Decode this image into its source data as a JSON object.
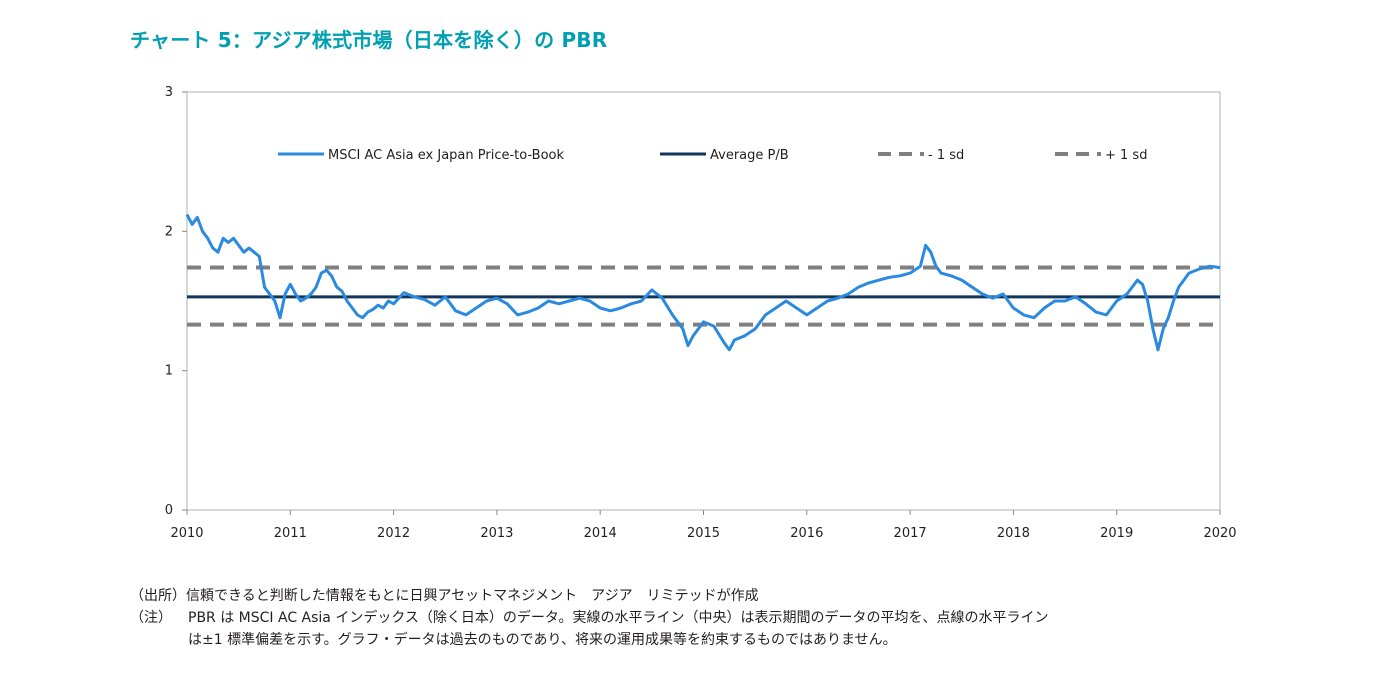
{
  "title": "チャート 5：アジア株式市場（日本を除く）の PBR",
  "notes": {
    "source": "（出所）信頼できると判断した情報をもとに日興アセットマネジメント　アジア　リミテッドが作成",
    "note_label": "（注）",
    "note_line1": "PBR は MSCI AC Asia インデックス（除く日本）のデータ。実線の水平ライン（中央）は表示期間のデータの平均を、点線の水平ライン",
    "note_line2": "は±1 標準偏差を示す。グラフ・データは過去のものであり、将来の運用成果等を約束するものではありません。"
  },
  "colors": {
    "title": "#00a0b0",
    "series": "#2b8ae0",
    "average": "#12365a",
    "sd": "#808080"
  },
  "chart_data": {
    "type": "line",
    "title": "",
    "xlabel": "",
    "ylabel": "",
    "xlim": [
      2010,
      2020
    ],
    "ylim": [
      0,
      3
    ],
    "x_ticks": [
      "2010",
      "2011",
      "2012",
      "2013",
      "2014",
      "2015",
      "2016",
      "2017",
      "2018",
      "2019",
      "2020"
    ],
    "y_ticks": [
      "0",
      "1",
      "2",
      "3"
    ],
    "grid": false,
    "legend_position": "top",
    "series": [
      {
        "name": "MSCI AC Asia ex Japan Price-to-Book",
        "style": "solid",
        "x": [
          2010.0,
          2010.05,
          2010.1,
          2010.15,
          2010.2,
          2010.25,
          2010.3,
          2010.35,
          2010.4,
          2010.45,
          2010.5,
          2010.55,
          2010.6,
          2010.65,
          2010.7,
          2010.75,
          2010.8,
          2010.85,
          2010.9,
          2010.95,
          2011.0,
          2011.05,
          2011.1,
          2011.15,
          2011.2,
          2011.25,
          2011.3,
          2011.35,
          2011.4,
          2011.45,
          2011.5,
          2011.55,
          2011.6,
          2011.65,
          2011.7,
          2011.75,
          2011.8,
          2011.85,
          2011.9,
          2011.95,
          2012.0,
          2012.1,
          2012.2,
          2012.3,
          2012.4,
          2012.5,
          2012.6,
          2012.7,
          2012.8,
          2012.9,
          2013.0,
          2013.1,
          2013.2,
          2013.3,
          2013.4,
          2013.5,
          2013.6,
          2013.7,
          2013.8,
          2013.9,
          2014.0,
          2014.1,
          2014.2,
          2014.3,
          2014.4,
          2014.5,
          2014.6,
          2014.7,
          2014.8,
          2014.85,
          2014.9,
          2014.95,
          2015.0,
          2015.1,
          2015.2,
          2015.25,
          2015.3,
          2015.4,
          2015.5,
          2015.6,
          2015.7,
          2015.8,
          2015.9,
          2016.0,
          2016.1,
          2016.2,
          2016.3,
          2016.4,
          2016.5,
          2016.6,
          2016.7,
          2016.8,
          2016.9,
          2017.0,
          2017.1,
          2017.15,
          2017.2,
          2017.25,
          2017.3,
          2017.4,
          2017.5,
          2017.6,
          2017.7,
          2017.8,
          2017.9,
          2018.0,
          2018.1,
          2018.2,
          2018.3,
          2018.4,
          2018.5,
          2018.6,
          2018.7,
          2018.8,
          2018.9,
          2019.0,
          2019.1,
          2019.2,
          2019.25,
          2019.3,
          2019.35,
          2019.4,
          2019.45,
          2019.5,
          2019.55,
          2019.6,
          2019.7,
          2019.8,
          2019.9,
          2020.0
        ],
        "y": [
          2.12,
          2.05,
          2.1,
          2.0,
          1.95,
          1.88,
          1.85,
          1.95,
          1.92,
          1.95,
          1.9,
          1.85,
          1.88,
          1.85,
          1.82,
          1.6,
          1.55,
          1.5,
          1.38,
          1.55,
          1.62,
          1.55,
          1.5,
          1.52,
          1.55,
          1.6,
          1.7,
          1.72,
          1.68,
          1.6,
          1.57,
          1.5,
          1.45,
          1.4,
          1.38,
          1.42,
          1.44,
          1.47,
          1.45,
          1.5,
          1.48,
          1.56,
          1.53,
          1.51,
          1.47,
          1.53,
          1.43,
          1.4,
          1.45,
          1.5,
          1.52,
          1.48,
          1.4,
          1.42,
          1.45,
          1.5,
          1.48,
          1.5,
          1.52,
          1.5,
          1.45,
          1.43,
          1.45,
          1.48,
          1.5,
          1.58,
          1.52,
          1.4,
          1.3,
          1.18,
          1.25,
          1.3,
          1.35,
          1.32,
          1.2,
          1.15,
          1.22,
          1.25,
          1.3,
          1.4,
          1.45,
          1.5,
          1.45,
          1.4,
          1.45,
          1.5,
          1.52,
          1.55,
          1.6,
          1.63,
          1.65,
          1.67,
          1.68,
          1.7,
          1.75,
          1.9,
          1.85,
          1.75,
          1.7,
          1.68,
          1.65,
          1.6,
          1.55,
          1.52,
          1.55,
          1.45,
          1.4,
          1.38,
          1.45,
          1.5,
          1.5,
          1.53,
          1.48,
          1.42,
          1.4,
          1.5,
          1.55,
          1.65,
          1.62,
          1.5,
          1.3,
          1.15,
          1.3,
          1.38,
          1.5,
          1.6,
          1.7,
          1.73,
          1.75,
          1.74
        ]
      },
      {
        "name": "Average P/B",
        "style": "solid",
        "y_const": 1.53
      },
      {
        "name": "- 1 sd",
        "style": "dashed",
        "y_const": 1.33
      },
      {
        "name": "+ 1 sd",
        "style": "dashed",
        "y_const": 1.74
      }
    ]
  }
}
